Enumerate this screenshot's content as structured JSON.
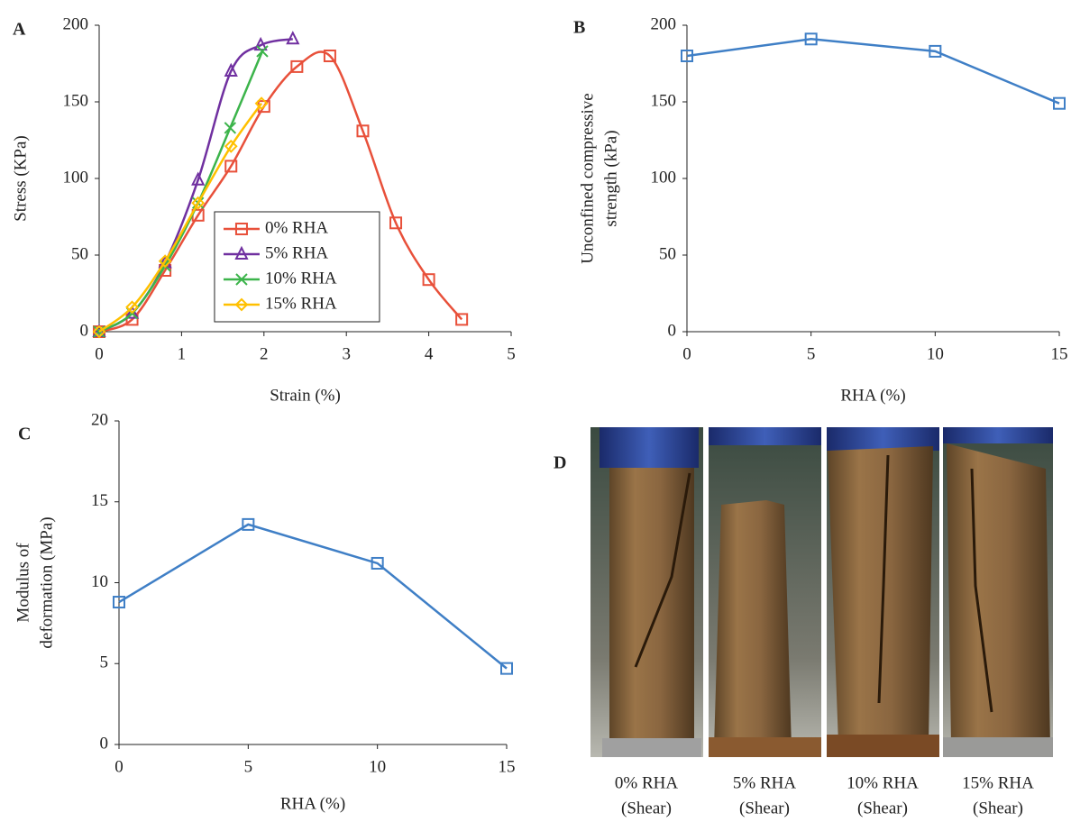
{
  "chart_data": [
    {
      "type": "line",
      "panel": "A",
      "xlabel": "Strain (%)",
      "ylabel": "Stress (KPa)",
      "xlim": [
        0,
        5
      ],
      "xticks": [
        0,
        1,
        2,
        3,
        4,
        5
      ],
      "ylim": [
        0,
        200
      ],
      "yticks": [
        0,
        50,
        100,
        150,
        200
      ],
      "smooth": true,
      "legend": "bottom-center",
      "series": [
        {
          "name": "0% RHA",
          "color": "#e8503a",
          "marker": "square",
          "x": [
            0,
            0.4,
            0.8,
            1.2,
            1.6,
            2.0,
            2.4,
            2.8,
            3.2,
            3.6,
            4.0,
            4.4
          ],
          "values": [
            0,
            8,
            40,
            76,
            108,
            147,
            173,
            180,
            131,
            71,
            34,
            8
          ]
        },
        {
          "name": "5% RHA",
          "color": "#7030a0",
          "marker": "triangle",
          "x": [
            0,
            0.4,
            0.8,
            1.2,
            1.6,
            1.96,
            2.35
          ],
          "values": [
            0,
            12,
            45,
            99,
            170,
            187,
            191
          ]
        },
        {
          "name": "10% RHA",
          "color": "#3cb44b",
          "marker": "x",
          "x": [
            0,
            0.4,
            0.8,
            1.2,
            1.59,
            1.98
          ],
          "values": [
            0,
            12,
            43,
            84,
            133,
            183
          ]
        },
        {
          "name": "15% RHA",
          "color": "#ffc000",
          "marker": "diamond",
          "x": [
            0,
            0.4,
            0.8,
            1.2,
            1.6,
            1.97
          ],
          "values": [
            0,
            16,
            46,
            84,
            121,
            149
          ]
        }
      ]
    },
    {
      "type": "line",
      "panel": "B",
      "xlabel": "RHA (%)",
      "ylabel": [
        "Unconfined compressive",
        "strength (kPa)"
      ],
      "xlim": [
        0,
        15
      ],
      "xticks": [
        0,
        5,
        10,
        15
      ],
      "ylim": [
        0,
        200
      ],
      "yticks": [
        0,
        50,
        100,
        150,
        200
      ],
      "x": [
        0,
        5,
        10,
        15
      ],
      "series": [
        {
          "color": "#3f7fc6",
          "marker": "square",
          "values": [
            180,
            191,
            183,
            149
          ]
        }
      ]
    },
    {
      "type": "line",
      "panel": "C",
      "xlabel": "RHA (%)",
      "ylabel": [
        "Modulus of",
        "deformation (MPa)"
      ],
      "xlim": [
        0,
        15
      ],
      "xticks": [
        0,
        5,
        10,
        15
      ],
      "ylim": [
        0,
        20
      ],
      "yticks": [
        0,
        5,
        10,
        15,
        20
      ],
      "x": [
        0,
        5,
        10,
        15
      ],
      "series": [
        {
          "color": "#3f7fc6",
          "marker": "square",
          "values": [
            8.8,
            13.6,
            11.2,
            4.7
          ]
        }
      ]
    }
  ],
  "panel_d": {
    "label": "D",
    "photos": [
      {
        "line1": "0% RHA",
        "line2": "(Shear)"
      },
      {
        "line1": "5% RHA",
        "line2": "(Shear)"
      },
      {
        "line1": "10% RHA",
        "line2": "(Shear)"
      },
      {
        "line1": "15% RHA",
        "line2": "(Shear)"
      }
    ]
  }
}
